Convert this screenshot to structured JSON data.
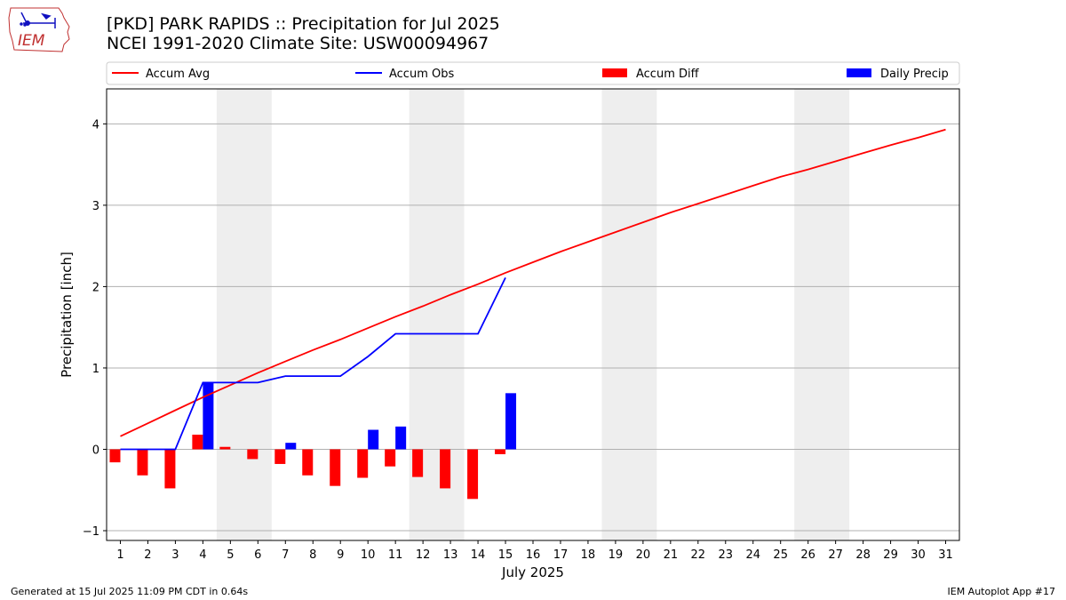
{
  "title_line1": "[PKD] PARK RAPIDS :: Precipitation for Jul 2025",
  "title_line2": "NCEI 1991-2020 Climate Site: USW00094967",
  "logo_text": "IEM",
  "footer_left": "Generated at 15 Jul 2025 11:09 PM CDT in 0.64s",
  "footer_right": "IEM Autoplot App #17",
  "colors": {
    "avg": "#ff0000",
    "obs": "#0000ff",
    "diff": "#ff0000",
    "daily": "#0000ff",
    "weekend": "#eeeeee",
    "grid": "#b0b0b0"
  },
  "chart_data": {
    "type": "line",
    "xlabel": "July 2025",
    "ylabel": "Precipitation [inch]",
    "xlim": [
      0.5,
      31.5
    ],
    "ylim": [
      -1.12,
      4.43
    ],
    "yticks": [
      -1,
      0,
      1,
      2,
      3,
      4
    ],
    "xticks": [
      1,
      2,
      3,
      4,
      5,
      6,
      7,
      8,
      9,
      10,
      11,
      12,
      13,
      14,
      15,
      16,
      17,
      18,
      19,
      20,
      21,
      22,
      23,
      24,
      25,
      26,
      27,
      28,
      29,
      30,
      31
    ],
    "grid": "horizontal",
    "legend_placement": "top",
    "weekend_bands": [
      [
        4.5,
        6.5
      ],
      [
        11.5,
        13.5
      ],
      [
        18.5,
        20.5
      ],
      [
        25.5,
        27.5
      ]
    ],
    "legend": [
      {
        "label": "Accum Avg",
        "kind": "line",
        "color": "#ff0000"
      },
      {
        "label": "Accum Obs",
        "kind": "line",
        "color": "#0000ff"
      },
      {
        "label": "Accum Diff",
        "kind": "bar",
        "color": "#ff0000"
      },
      {
        "label": "Daily Precip",
        "kind": "bar",
        "color": "#0000ff"
      }
    ],
    "series": [
      {
        "name": "Accum Avg",
        "type": "line",
        "x": [
          1,
          2,
          3,
          4,
          5,
          6,
          7,
          8,
          9,
          10,
          11,
          12,
          13,
          14,
          15,
          16,
          17,
          18,
          19,
          20,
          21,
          22,
          23,
          24,
          25,
          26,
          27,
          28,
          29,
          30,
          31
        ],
        "values": [
          0.16,
          0.32,
          0.48,
          0.64,
          0.79,
          0.94,
          1.08,
          1.22,
          1.35,
          1.49,
          1.63,
          1.76,
          1.9,
          2.03,
          2.17,
          2.3,
          2.43,
          2.55,
          2.67,
          2.79,
          2.91,
          3.02,
          3.13,
          3.24,
          3.35,
          3.44,
          3.54,
          3.64,
          3.74,
          3.83,
          3.93
        ]
      },
      {
        "name": "Accum Obs",
        "type": "line",
        "x": [
          1,
          2,
          3,
          4,
          5,
          6,
          7,
          8,
          9,
          10,
          11,
          12,
          13,
          14,
          15
        ],
        "values": [
          0,
          0,
          0,
          0.82,
          0.82,
          0.82,
          0.9,
          0.9,
          0.9,
          1.14,
          1.42,
          1.42,
          1.42,
          1.42,
          2.11
        ]
      },
      {
        "name": "Accum Diff",
        "type": "bar",
        "x": [
          1,
          2,
          3,
          4,
          5,
          6,
          7,
          8,
          9,
          10,
          11,
          12,
          13,
          14,
          15
        ],
        "values": [
          -0.16,
          -0.32,
          -0.48,
          0.18,
          0.03,
          -0.12,
          -0.18,
          -0.32,
          -0.45,
          -0.35,
          -0.21,
          -0.34,
          -0.48,
          -0.61,
          -0.06
        ]
      },
      {
        "name": "Daily Precip",
        "type": "bar",
        "x": [
          1,
          2,
          3,
          4,
          5,
          6,
          7,
          8,
          9,
          10,
          11,
          12,
          13,
          14,
          15
        ],
        "values": [
          0,
          0,
          0,
          0.82,
          0,
          0,
          0.08,
          0,
          0,
          0.24,
          0.28,
          0,
          0,
          0,
          0.69
        ]
      }
    ]
  }
}
